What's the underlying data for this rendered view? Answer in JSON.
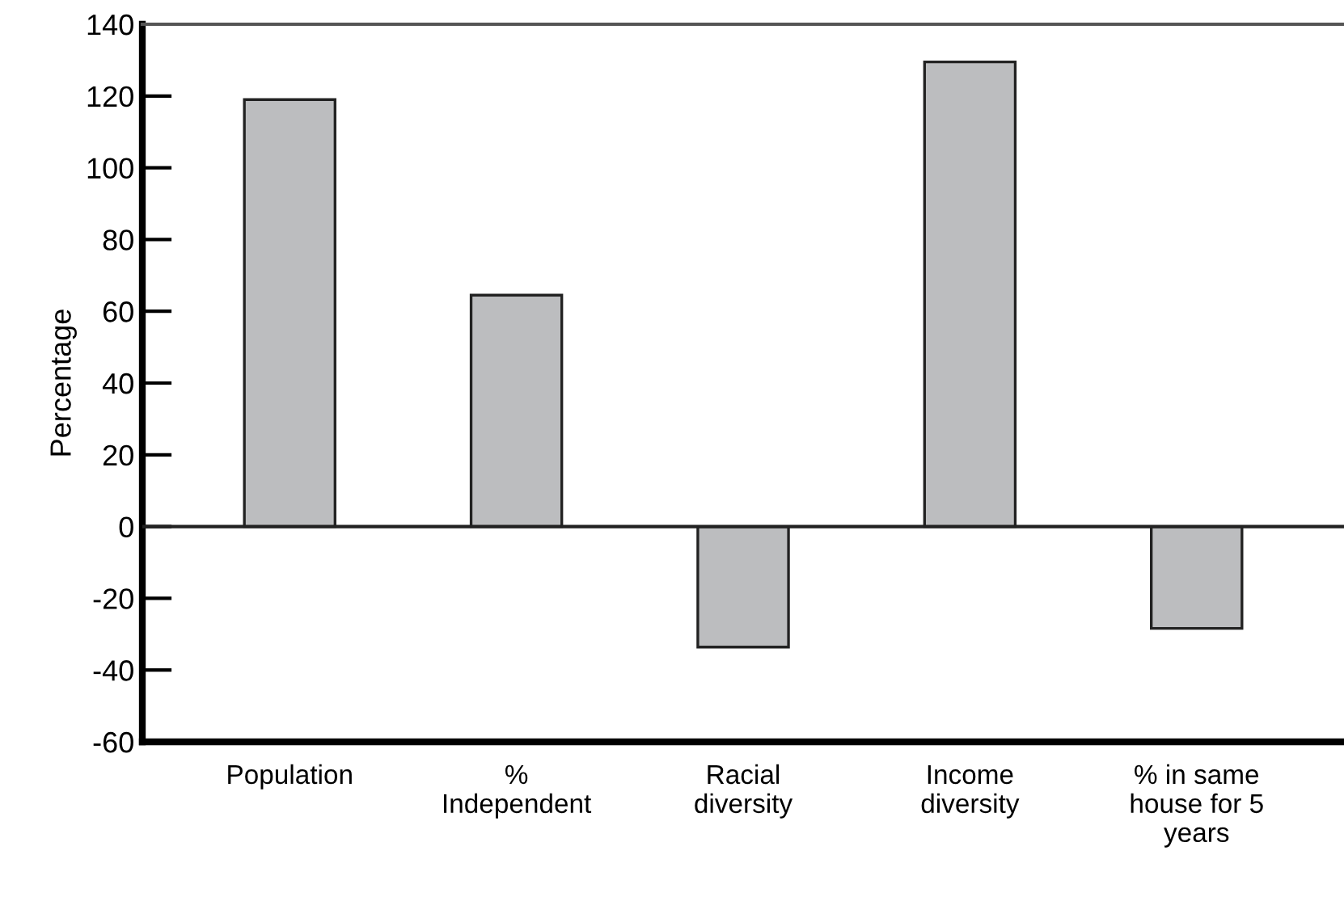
{
  "chart_data": {
    "type": "bar",
    "ylabel": "Percentage",
    "categories": [
      "Population",
      "%\nIndependent",
      "Racial\ndiversity",
      "Income\ndiversity",
      "% in same\nhouse for 5\nyears"
    ],
    "values": [
      119,
      64.5,
      -33.6,
      129.5,
      -28.4
    ],
    "color": "#bcbdbf",
    "ylim": [
      -60,
      140
    ],
    "yticks": [
      -60,
      -40,
      -20,
      0,
      20,
      40,
      60,
      80,
      100,
      120,
      140
    ],
    "ref_lines": [
      {
        "axis": "y",
        "value": 0,
        "color": "#222222"
      }
    ],
    "grid": false,
    "legend": false
  }
}
